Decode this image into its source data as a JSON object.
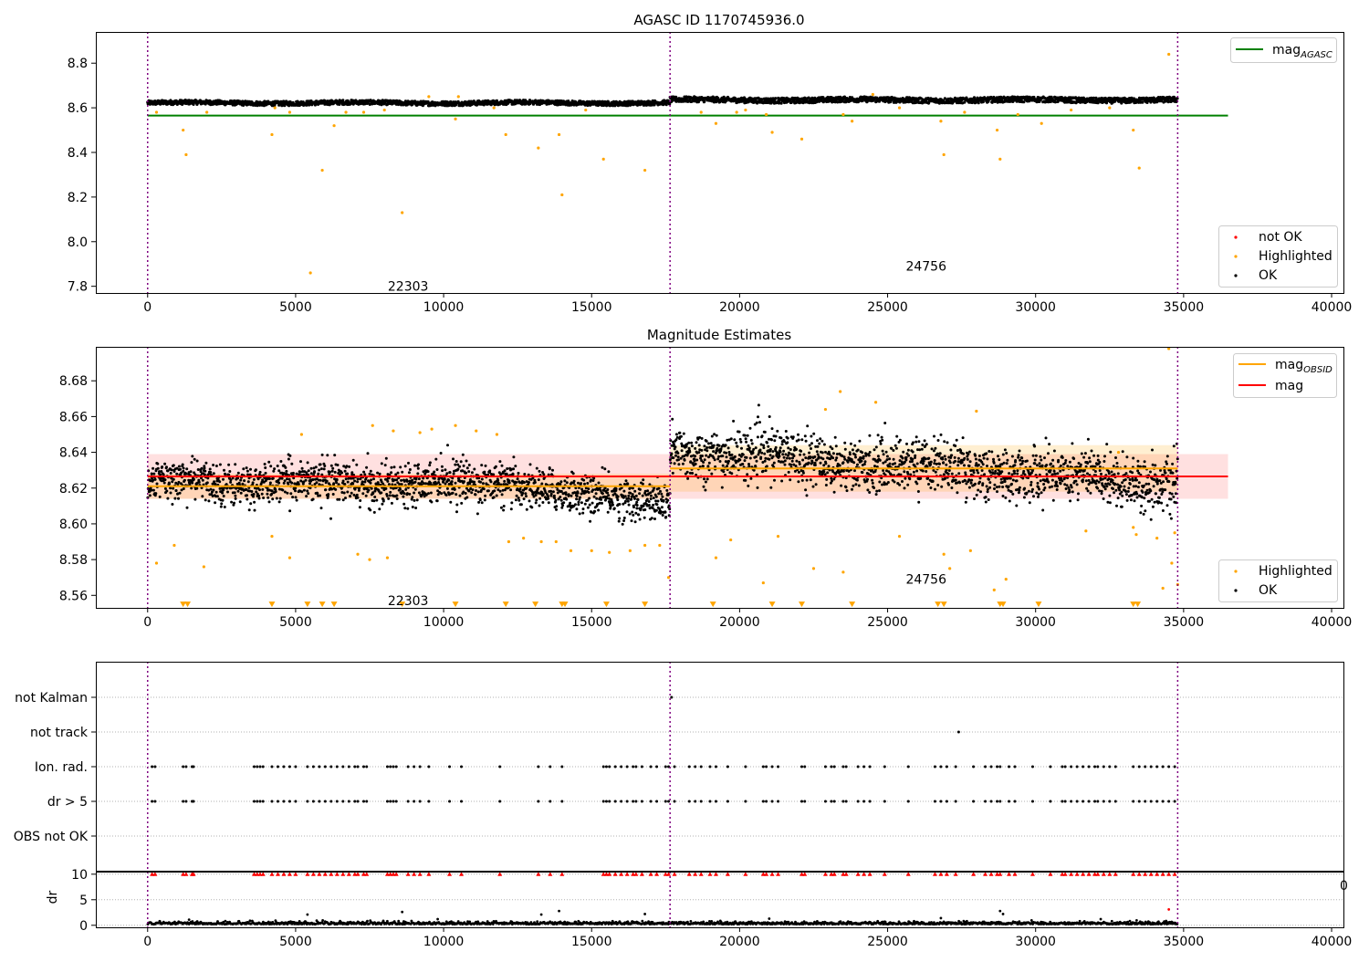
{
  "chart_data": [
    {
      "type": "scatter",
      "title": "AGASC ID 1170745936.0",
      "xlim": [
        -1750,
        40400
      ],
      "ylim": [
        7.77,
        8.94
      ],
      "xticks": [
        0,
        5000,
        10000,
        15000,
        20000,
        25000,
        30000,
        35000,
        40000
      ],
      "yticks": [
        7.8,
        8.0,
        8.2,
        8.4,
        8.6,
        8.8
      ],
      "obsid_boundaries": [
        0,
        17650,
        34800
      ],
      "obsid_labels": [
        {
          "text": "22303",
          "x": 8800,
          "y": 7.8
        },
        {
          "text": "24756",
          "x": 26300,
          "y": 7.89
        }
      ],
      "reference_lines": [
        {
          "name": "mag_AGASC",
          "y": 8.565,
          "x_range": [
            0,
            36500
          ],
          "color": "#008000"
        }
      ],
      "ok_band": [
        {
          "x_range": [
            0,
            17650
          ],
          "y_center": 8.622,
          "y_halfwidth": 0.01
        },
        {
          "x_range": [
            17650,
            34800
          ],
          "y_center": 8.635,
          "y_halfwidth": 0.012
        }
      ],
      "series": [
        {
          "name": "Highlighted",
          "color": "#ffa500",
          "points": [
            [
              1200,
              8.5
            ],
            [
              1300,
              8.39
            ],
            [
              4200,
              8.48
            ],
            [
              5500,
              7.86
            ],
            [
              5900,
              8.32
            ],
            [
              6300,
              8.52
            ],
            [
              8600,
              8.13
            ],
            [
              10400,
              8.55
            ],
            [
              12100,
              8.48
            ],
            [
              13200,
              8.42
            ],
            [
              13900,
              8.48
            ],
            [
              14000,
              8.21
            ],
            [
              15400,
              8.37
            ],
            [
              16800,
              8.32
            ],
            [
              19200,
              8.53
            ],
            [
              20900,
              8.57
            ],
            [
              21100,
              8.49
            ],
            [
              22100,
              8.46
            ],
            [
              23500,
              8.57
            ],
            [
              23800,
              8.54
            ],
            [
              26800,
              8.54
            ],
            [
              26900,
              8.39
            ],
            [
              28700,
              8.5
            ],
            [
              28800,
              8.37
            ],
            [
              30200,
              8.53
            ],
            [
              33300,
              8.5
            ],
            [
              33500,
              8.33
            ],
            [
              34500,
              8.84
            ],
            [
              300,
              8.58
            ],
            [
              2000,
              8.58
            ],
            [
              4300,
              8.6
            ],
            [
              4800,
              8.58
            ],
            [
              6700,
              8.58
            ],
            [
              7300,
              8.58
            ],
            [
              8000,
              8.59
            ],
            [
              9500,
              8.65
            ],
            [
              10500,
              8.65
            ],
            [
              11700,
              8.6
            ],
            [
              14800,
              8.59
            ],
            [
              18700,
              8.58
            ],
            [
              19900,
              8.58
            ],
            [
              20200,
              8.59
            ],
            [
              24500,
              8.66
            ],
            [
              25400,
              8.6
            ],
            [
              27600,
              8.58
            ],
            [
              29400,
              8.57
            ],
            [
              31200,
              8.59
            ],
            [
              32500,
              8.6
            ]
          ]
        },
        {
          "name": "OK",
          "color": "#000000"
        }
      ],
      "legend": [
        {
          "name": "not OK",
          "color": "#ff0000"
        },
        {
          "name": "Highlighted",
          "color": "#ffa500"
        },
        {
          "name": "OK",
          "color": "#000000"
        }
      ],
      "legend2": [
        {
          "name": "mag",
          "sub": "AGASC",
          "color": "#008000"
        }
      ]
    },
    {
      "type": "scatter",
      "title": "Magnitude Estimates",
      "xlim": [
        -1750,
        40400
      ],
      "ylim": [
        8.553,
        8.699
      ],
      "xticks": [
        0,
        5000,
        10000,
        15000,
        20000,
        25000,
        30000,
        35000,
        40000
      ],
      "yticks": [
        8.56,
        8.58,
        8.6,
        8.62,
        8.64,
        8.66,
        8.68
      ],
      "obsid_boundaries": [
        0,
        17650,
        34800
      ],
      "obsid_labels": [
        {
          "text": "22303",
          "x": 8800,
          "y": 8.557
        },
        {
          "text": "24756",
          "x": 26300,
          "y": 8.569
        }
      ],
      "reference_lines": [
        {
          "name": "mag_OBSID",
          "segments": [
            {
              "x_range": [
                0,
                17650
              ],
              "y": 8.621
            },
            {
              "x_range": [
                17650,
                34800
              ],
              "y": 8.631
            }
          ],
          "color": "#ffa500"
        },
        {
          "name": "mag",
          "y": 8.6265,
          "x_range": [
            0,
            36500
          ],
          "color": "#ff0000"
        }
      ],
      "mag_band": {
        "y_range": [
          8.614,
          8.639
        ],
        "x_range": [
          0,
          36500
        ]
      },
      "obsid_bands": [
        {
          "x_range": [
            0,
            17650
          ],
          "y_range": [
            8.614,
            8.628
          ]
        },
        {
          "x_range": [
            17650,
            34800
          ],
          "y_range": [
            8.618,
            8.644
          ]
        }
      ],
      "clipped_marker_y": 8.555,
      "clipped_markers_x": [
        1200,
        1350,
        4200,
        5400,
        5900,
        6300,
        8600,
        10400,
        12100,
        13100,
        14000,
        14100,
        15500,
        16800,
        19100,
        21100,
        22100,
        23800,
        26700,
        26900,
        28800,
        28900,
        30100,
        33300,
        33450
      ],
      "series": [
        {
          "name": "Highlighted",
          "color": "#ffa500",
          "points": [
            [
              300,
              8.578
            ],
            [
              900,
              8.588
            ],
            [
              1900,
              8.576
            ],
            [
              4200,
              8.593
            ],
            [
              4800,
              8.581
            ],
            [
              7100,
              8.583
            ],
            [
              7500,
              8.58
            ],
            [
              8100,
              8.581
            ],
            [
              5200,
              8.65
            ],
            [
              7600,
              8.655
            ],
            [
              8300,
              8.652
            ],
            [
              9200,
              8.651
            ],
            [
              9600,
              8.653
            ],
            [
              10400,
              8.655
            ],
            [
              11100,
              8.652
            ],
            [
              11800,
              8.65
            ],
            [
              12200,
              8.59
            ],
            [
              12700,
              8.592
            ],
            [
              13300,
              8.59
            ],
            [
              13800,
              8.59
            ],
            [
              14300,
              8.585
            ],
            [
              15000,
              8.585
            ],
            [
              15600,
              8.584
            ],
            [
              16300,
              8.585
            ],
            [
              16800,
              8.588
            ],
            [
              17300,
              8.588
            ],
            [
              17600,
              8.57
            ],
            [
              19200,
              8.581
            ],
            [
              19700,
              8.591
            ],
            [
              20800,
              8.567
            ],
            [
              21300,
              8.593
            ],
            [
              22500,
              8.575
            ],
            [
              23500,
              8.573
            ],
            [
              22900,
              8.664
            ],
            [
              23400,
              8.674
            ],
            [
              24600,
              8.668
            ],
            [
              25400,
              8.593
            ],
            [
              26900,
              8.583
            ],
            [
              27100,
              8.575
            ],
            [
              27800,
              8.585
            ],
            [
              28000,
              8.663
            ],
            [
              28600,
              8.563
            ],
            [
              29000,
              8.569
            ],
            [
              31700,
              8.596
            ],
            [
              33300,
              8.598
            ],
            [
              33400,
              8.594
            ],
            [
              34100,
              8.592
            ],
            [
              34300,
              8.564
            ],
            [
              34500,
              8.698
            ],
            [
              34800,
              8.566
            ],
            [
              34700,
              8.595
            ],
            [
              34600,
              8.578
            ],
            [
              32800,
              8.64
            ]
          ]
        },
        {
          "name": "OK",
          "color": "#000000"
        }
      ],
      "legend": [
        {
          "name": "Highlighted",
          "color": "#ffa500"
        },
        {
          "name": "OK",
          "color": "#000000"
        }
      ],
      "legend2": [
        {
          "name": "mag",
          "sub": "OBSID",
          "color": "#ffa500"
        },
        {
          "name": "mag",
          "sub": "",
          "color": "#ff0000"
        }
      ]
    },
    {
      "type": "scatter",
      "title": "",
      "xlim": [
        -1750,
        40400
      ],
      "categories": [
        "not Kalman",
        "not track",
        "Ion. rad.",
        "dr > 5",
        "OBS not OK"
      ],
      "obsid_boundaries": [
        0,
        17650,
        34800
      ],
      "flag_points": {
        "not Kalman": [
          17700
        ],
        "not track": [
          27400
        ],
        "Ion. rad.": [
          150,
          250,
          1200,
          1300,
          1500,
          1550,
          3600,
          3700,
          3800,
          3900,
          4200,
          4400,
          4600,
          4800,
          5000,
          5400,
          5600,
          5800,
          6000,
          6200,
          6400,
          6600,
          6800,
          7000,
          7100,
          7300,
          7400,
          8100,
          8200,
          8300,
          8400,
          8800,
          9000,
          9200,
          9500,
          10200,
          10600,
          11900,
          13200,
          13600,
          14000,
          15400,
          15500,
          15600,
          15800,
          16000,
          16200,
          16400,
          16500,
          16700,
          17000,
          17200,
          17500,
          17600,
          17800,
          18300,
          18500,
          18700,
          19000,
          19200,
          19600,
          20200,
          20800,
          20900,
          21100,
          21300,
          22100,
          22200,
          22900,
          23100,
          23200,
          23500,
          23600,
          24000,
          24200,
          24400,
          24900,
          25700,
          26600,
          26800,
          27000,
          27300,
          27900,
          28300,
          28500,
          28700,
          28800,
          29100,
          29300,
          29900,
          30500,
          30900,
          31000,
          31200,
          31400,
          31600,
          31800,
          32000,
          32100,
          32300,
          32500,
          32700,
          33300,
          33500,
          33700,
          33900,
          34100,
          34300,
          34500,
          34700
        ],
        "dr > 5": [
          150,
          250,
          1200,
          1300,
          1500,
          1550,
          3600,
          3700,
          3800,
          3900,
          4200,
          4400,
          4600,
          4800,
          5000,
          5400,
          5600,
          5800,
          6000,
          6200,
          6400,
          6600,
          6800,
          7000,
          7100,
          7300,
          7400,
          8100,
          8200,
          8300,
          8400,
          8800,
          9000,
          9200,
          9500,
          10200,
          10600,
          11900,
          13200,
          13600,
          14000,
          15400,
          15500,
          15600,
          15800,
          16000,
          16200,
          16400,
          16500,
          16700,
          17000,
          17200,
          17500,
          17600,
          17800,
          18300,
          18500,
          18700,
          19000,
          19200,
          19600,
          20200,
          20800,
          20900,
          21100,
          21300,
          22100,
          22200,
          22900,
          23100,
          23200,
          23500,
          23600,
          24000,
          24200,
          24400,
          24900,
          25700,
          26600,
          26800,
          27000,
          27300,
          27900,
          28300,
          28500,
          28700,
          28800,
          29100,
          29300,
          29900,
          30500,
          30900,
          31000,
          31200,
          31400,
          31600,
          31800,
          32000,
          32100,
          32300,
          32500,
          32700,
          33300,
          33500,
          33700,
          33900,
          34100,
          34300,
          34500,
          34700
        ],
        "OBS not OK": []
      }
    },
    {
      "type": "scatter",
      "title": "",
      "xlim": [
        -1750,
        40400
      ],
      "ylim": [
        -0.4,
        10.5
      ],
      "xticks": [
        0,
        5000,
        10000,
        15000,
        20000,
        25000,
        30000,
        35000,
        40000
      ],
      "yticks": [
        0,
        5,
        10
      ],
      "ylabel": "dr",
      "obsid_boundaries": [
        0,
        17650,
        34800
      ],
      "clip_value": 10,
      "side_tick_label": "0",
      "outliers": [
        [
          5400,
          2.1
        ],
        [
          8600,
          2.6
        ],
        [
          13300,
          2.1
        ],
        [
          13900,
          2.8
        ],
        [
          16800,
          2.2
        ],
        [
          28800,
          2.8
        ],
        [
          28900,
          2.2
        ],
        [
          34500,
          3.1
        ],
        [
          9800,
          1.2
        ],
        [
          21000,
          1.3
        ],
        [
          1400,
          1.1
        ],
        [
          26800,
          1.4
        ],
        [
          32200,
          1.2
        ]
      ],
      "clipped_x": [
        150,
        250,
        1200,
        1300,
        1500,
        1550,
        3600,
        3700,
        3800,
        3900,
        4200,
        4400,
        4600,
        4800,
        5000,
        5400,
        5600,
        5800,
        6000,
        6200,
        6400,
        6600,
        6800,
        7000,
        7100,
        7300,
        7400,
        8100,
        8200,
        8300,
        8400,
        8800,
        9000,
        9200,
        9500,
        10200,
        10600,
        11900,
        13200,
        13600,
        14000,
        15400,
        15500,
        15600,
        15800,
        16000,
        16200,
        16400,
        16500,
        16700,
        17000,
        17200,
        17500,
        17600,
        17800,
        18300,
        18500,
        18700,
        19000,
        19200,
        19600,
        20200,
        20800,
        20900,
        21100,
        21300,
        22100,
        22200,
        22900,
        23100,
        23200,
        23500,
        23600,
        24000,
        24200,
        24400,
        24900,
        25700,
        26600,
        26800,
        27000,
        27300,
        27900,
        28300,
        28500,
        28700,
        28800,
        29100,
        29300,
        29900,
        30500,
        30900,
        31000,
        31200,
        31400,
        31600,
        31800,
        32000,
        32100,
        32300,
        32500,
        32700,
        33300,
        33500,
        33700,
        33900,
        34100,
        34300,
        34500,
        34700
      ]
    }
  ]
}
